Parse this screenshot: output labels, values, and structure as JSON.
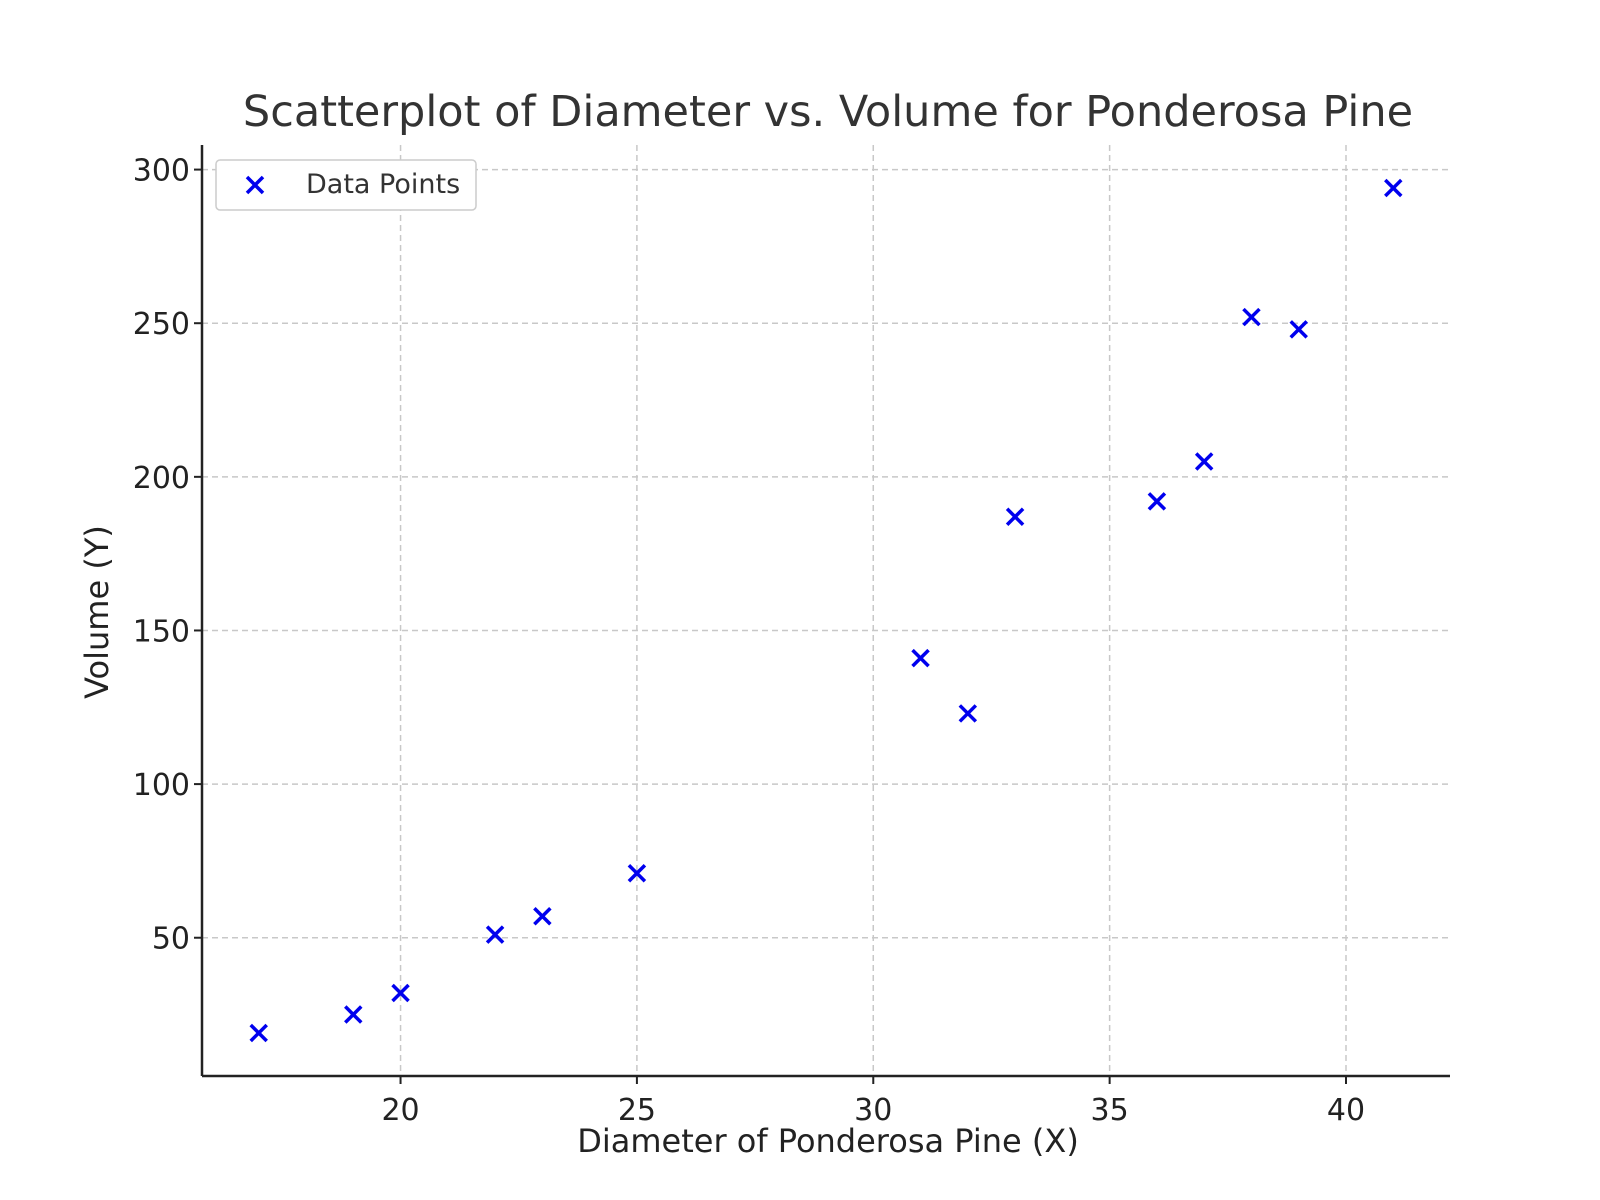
{
  "chart_data": {
    "type": "scatter",
    "title": "Scatterplot of Diameter vs. Volume for Ponderosa Pine",
    "xlabel": "Diameter of Ponderosa Pine (X)",
    "ylabel": "Volume (Y)",
    "xlim": [
      15.8,
      42.2
    ],
    "ylim": [
      5,
      308
    ],
    "xticks": [
      20,
      25,
      30,
      35,
      40
    ],
    "yticks": [
      50,
      100,
      150,
      200,
      250,
      300
    ],
    "grid": true,
    "legend_position": "top-left",
    "marker": "x",
    "series": [
      {
        "name": "Data Points",
        "color": "#0000ee",
        "x": [
          17,
          19,
          20,
          22,
          23,
          25,
          31,
          32,
          33,
          36,
          37,
          38,
          39,
          41
        ],
        "y": [
          19,
          25,
          32,
          51,
          57,
          71,
          141,
          123,
          187,
          192,
          205,
          252,
          248,
          294
        ]
      }
    ]
  }
}
